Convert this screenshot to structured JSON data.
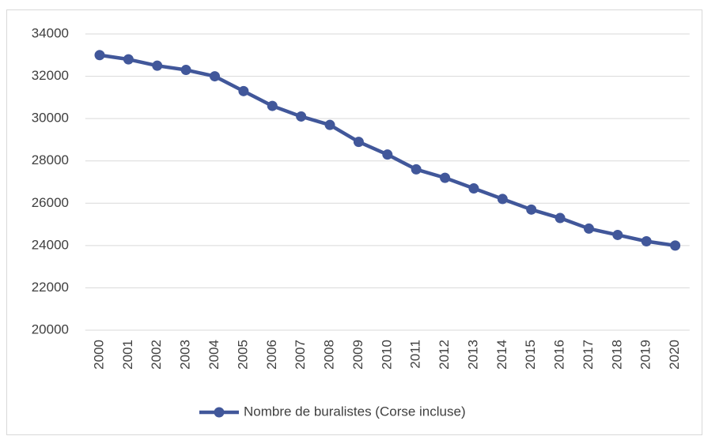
{
  "chart_data": {
    "type": "line",
    "categories": [
      "2000",
      "2001",
      "2002",
      "2003",
      "2004",
      "2005",
      "2006",
      "2007",
      "2008",
      "2009",
      "2010",
      "2011",
      "2012",
      "2013",
      "2014",
      "2015",
      "2016",
      "2017",
      "2018",
      "2019",
      "2020"
    ],
    "series": [
      {
        "name": "Nombre de buralistes (Corse incluse)",
        "color": "#41579a",
        "values": [
          33000,
          32800,
          32500,
          32300,
          32000,
          31300,
          30600,
          30100,
          29700,
          28900,
          28300,
          27600,
          27200,
          26700,
          26200,
          25700,
          25300,
          24800,
          24500,
          24200,
          24000
        ]
      }
    ],
    "ylim": [
      20000,
      34000
    ],
    "yticks": [
      20000,
      22000,
      24000,
      26000,
      28000,
      30000,
      32000,
      34000
    ],
    "grid": true,
    "legend": "bottom"
  }
}
